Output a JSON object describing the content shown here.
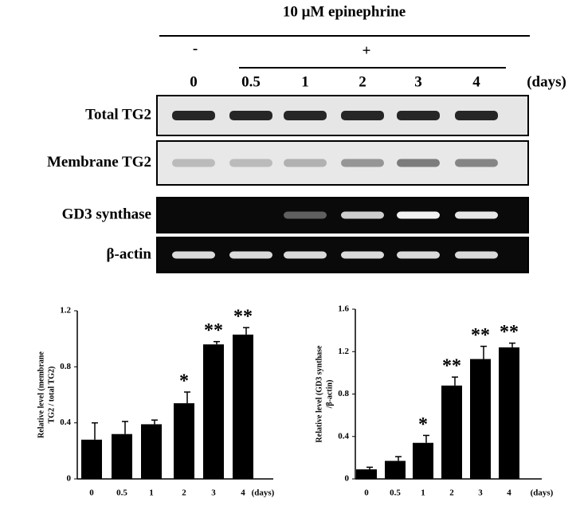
{
  "blot": {
    "title": "10 μM epinephrine",
    "minus": "-",
    "plus": "+",
    "lanes": [
      "0",
      "0.5",
      "1",
      "2",
      "3",
      "4"
    ],
    "unit": "(days)",
    "rows": [
      "Total TG2",
      "Membrane TG2",
      "GD3 synthase",
      "β-actin"
    ]
  },
  "chart_data": [
    {
      "type": "bar",
      "ylabel": [
        "Relative level  (membrane",
        "TG2 / total TG2)"
      ],
      "xunit": "(days)",
      "categories": [
        "0",
        "0.5",
        "1",
        "2",
        "3",
        "4"
      ],
      "values": [
        0.28,
        0.32,
        0.39,
        0.54,
        0.96,
        1.03
      ],
      "errors": [
        0.12,
        0.09,
        0.03,
        0.08,
        0.02,
        0.05
      ],
      "annotations": [
        null,
        null,
        null,
        "*",
        "**",
        "**"
      ],
      "color": "#000000",
      "ylim": [
        0,
        1.2
      ],
      "yticks": [
        0,
        0.4,
        0.8,
        1.2
      ]
    },
    {
      "type": "bar",
      "ylabel": [
        "Relative level  (GD3 synthase",
        "/β-actin)"
      ],
      "xunit": "(days)",
      "categories": [
        "0",
        "0.5",
        "1",
        "2",
        "3",
        "4"
      ],
      "values": [
        0.09,
        0.17,
        0.34,
        0.88,
        1.13,
        1.24
      ],
      "errors": [
        0.02,
        0.04,
        0.07,
        0.08,
        0.12,
        0.04
      ],
      "annotations": [
        null,
        null,
        "*",
        "**",
        "**",
        "**"
      ],
      "color": "#000000",
      "ylim": [
        0,
        1.6
      ],
      "yticks": [
        0,
        0.4,
        0.8,
        1.2,
        1.6
      ]
    }
  ]
}
